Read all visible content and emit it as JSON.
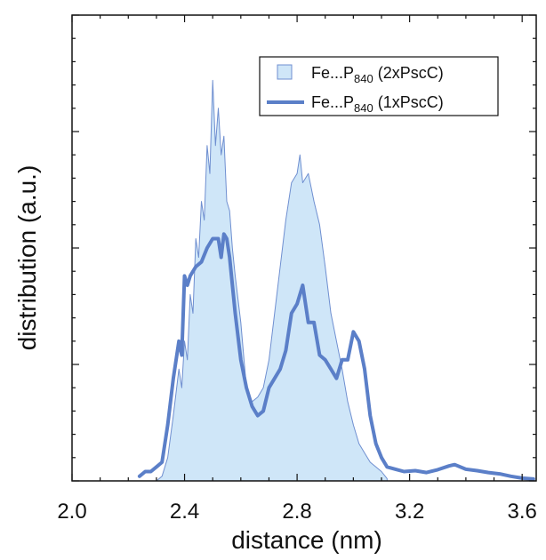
{
  "chart_data": {
    "type": "area",
    "xlabel": "distance (nm)",
    "ylabel": "distribution (a.u.)",
    "xlim": [
      2.0,
      3.65
    ],
    "ylim": [
      0,
      1.0
    ],
    "x_ticks": [
      "2.0",
      "2.4",
      "2.8",
      "3.2",
      "3.6"
    ],
    "y_ticks_labeled": false,
    "grid": false,
    "legend_position": "top-right",
    "series": [
      {
        "name": "Fe...P840 (2xPscC)",
        "name_main": "Fe...P",
        "name_sub": "840",
        "name_suffix": " (2xPscC)",
        "style": "filled",
        "color": "#cfe6f8",
        "edge_color": "#6f8fd0",
        "points": [
          [
            2.3,
            0.0
          ],
          [
            2.32,
            0.01
          ],
          [
            2.34,
            0.05
          ],
          [
            2.36,
            0.14
          ],
          [
            2.38,
            0.24
          ],
          [
            2.39,
            0.2
          ],
          [
            2.4,
            0.3
          ],
          [
            2.41,
            0.26
          ],
          [
            2.42,
            0.4
          ],
          [
            2.43,
            0.36
          ],
          [
            2.44,
            0.52
          ],
          [
            2.45,
            0.48
          ],
          [
            2.46,
            0.6
          ],
          [
            2.47,
            0.56
          ],
          [
            2.48,
            0.72
          ],
          [
            2.49,
            0.66
          ],
          [
            2.5,
            0.86
          ],
          [
            2.51,
            0.72
          ],
          [
            2.52,
            0.8
          ],
          [
            2.53,
            0.7
          ],
          [
            2.54,
            0.74
          ],
          [
            2.55,
            0.6
          ],
          [
            2.56,
            0.58
          ],
          [
            2.57,
            0.5
          ],
          [
            2.58,
            0.44
          ],
          [
            2.6,
            0.34
          ],
          [
            2.62,
            0.2
          ],
          [
            2.64,
            0.17
          ],
          [
            2.66,
            0.18
          ],
          [
            2.68,
            0.2
          ],
          [
            2.7,
            0.26
          ],
          [
            2.72,
            0.36
          ],
          [
            2.74,
            0.46
          ],
          [
            2.76,
            0.56
          ],
          [
            2.78,
            0.64
          ],
          [
            2.8,
            0.66
          ],
          [
            2.81,
            0.7
          ],
          [
            2.82,
            0.64
          ],
          [
            2.84,
            0.66
          ],
          [
            2.86,
            0.6
          ],
          [
            2.88,
            0.55
          ],
          [
            2.9,
            0.46
          ],
          [
            2.92,
            0.36
          ],
          [
            2.94,
            0.3
          ],
          [
            2.96,
            0.24
          ],
          [
            2.98,
            0.17
          ],
          [
            3.0,
            0.12
          ],
          [
            3.02,
            0.08
          ],
          [
            3.04,
            0.06
          ],
          [
            3.06,
            0.04
          ],
          [
            3.08,
            0.03
          ],
          [
            3.1,
            0.02
          ],
          [
            3.12,
            0.005
          ]
        ]
      },
      {
        "name": "Fe...P840 (1xPscC)",
        "name_main": "Fe...P",
        "name_sub": "840",
        "name_suffix": " (1xPscC)",
        "style": "line",
        "color": "#5b7fc8",
        "points": [
          [
            2.24,
            0.01
          ],
          [
            2.26,
            0.02
          ],
          [
            2.28,
            0.02
          ],
          [
            2.3,
            0.03
          ],
          [
            2.32,
            0.04
          ],
          [
            2.34,
            0.12
          ],
          [
            2.36,
            0.22
          ],
          [
            2.38,
            0.3
          ],
          [
            2.39,
            0.27
          ],
          [
            2.4,
            0.44
          ],
          [
            2.41,
            0.42
          ],
          [
            2.42,
            0.44
          ],
          [
            2.44,
            0.46
          ],
          [
            2.46,
            0.47
          ],
          [
            2.48,
            0.5
          ],
          [
            2.5,
            0.52
          ],
          [
            2.52,
            0.52
          ],
          [
            2.53,
            0.48
          ],
          [
            2.54,
            0.53
          ],
          [
            2.55,
            0.52
          ],
          [
            2.56,
            0.48
          ],
          [
            2.58,
            0.36
          ],
          [
            2.6,
            0.26
          ],
          [
            2.62,
            0.2
          ],
          [
            2.64,
            0.16
          ],
          [
            2.66,
            0.14
          ],
          [
            2.68,
            0.15
          ],
          [
            2.7,
            0.2
          ],
          [
            2.72,
            0.22
          ],
          [
            2.74,
            0.24
          ],
          [
            2.76,
            0.28
          ],
          [
            2.78,
            0.36
          ],
          [
            2.8,
            0.38
          ],
          [
            2.82,
            0.42
          ],
          [
            2.84,
            0.34
          ],
          [
            2.86,
            0.34
          ],
          [
            2.88,
            0.27
          ],
          [
            2.9,
            0.26
          ],
          [
            2.92,
            0.24
          ],
          [
            2.94,
            0.22
          ],
          [
            2.96,
            0.26
          ],
          [
            2.98,
            0.26
          ],
          [
            3.0,
            0.32
          ],
          [
            3.02,
            0.3
          ],
          [
            3.04,
            0.24
          ],
          [
            3.06,
            0.14
          ],
          [
            3.08,
            0.08
          ],
          [
            3.1,
            0.05
          ],
          [
            3.12,
            0.03
          ],
          [
            3.15,
            0.025
          ],
          [
            3.18,
            0.02
          ],
          [
            3.22,
            0.022
          ],
          [
            3.26,
            0.018
          ],
          [
            3.3,
            0.024
          ],
          [
            3.34,
            0.032
          ],
          [
            3.36,
            0.035
          ],
          [
            3.4,
            0.025
          ],
          [
            3.44,
            0.022
          ],
          [
            3.48,
            0.018
          ],
          [
            3.52,
            0.015
          ],
          [
            3.56,
            0.01
          ],
          [
            3.6,
            0.006
          ],
          [
            3.64,
            0.004
          ]
        ]
      }
    ]
  }
}
